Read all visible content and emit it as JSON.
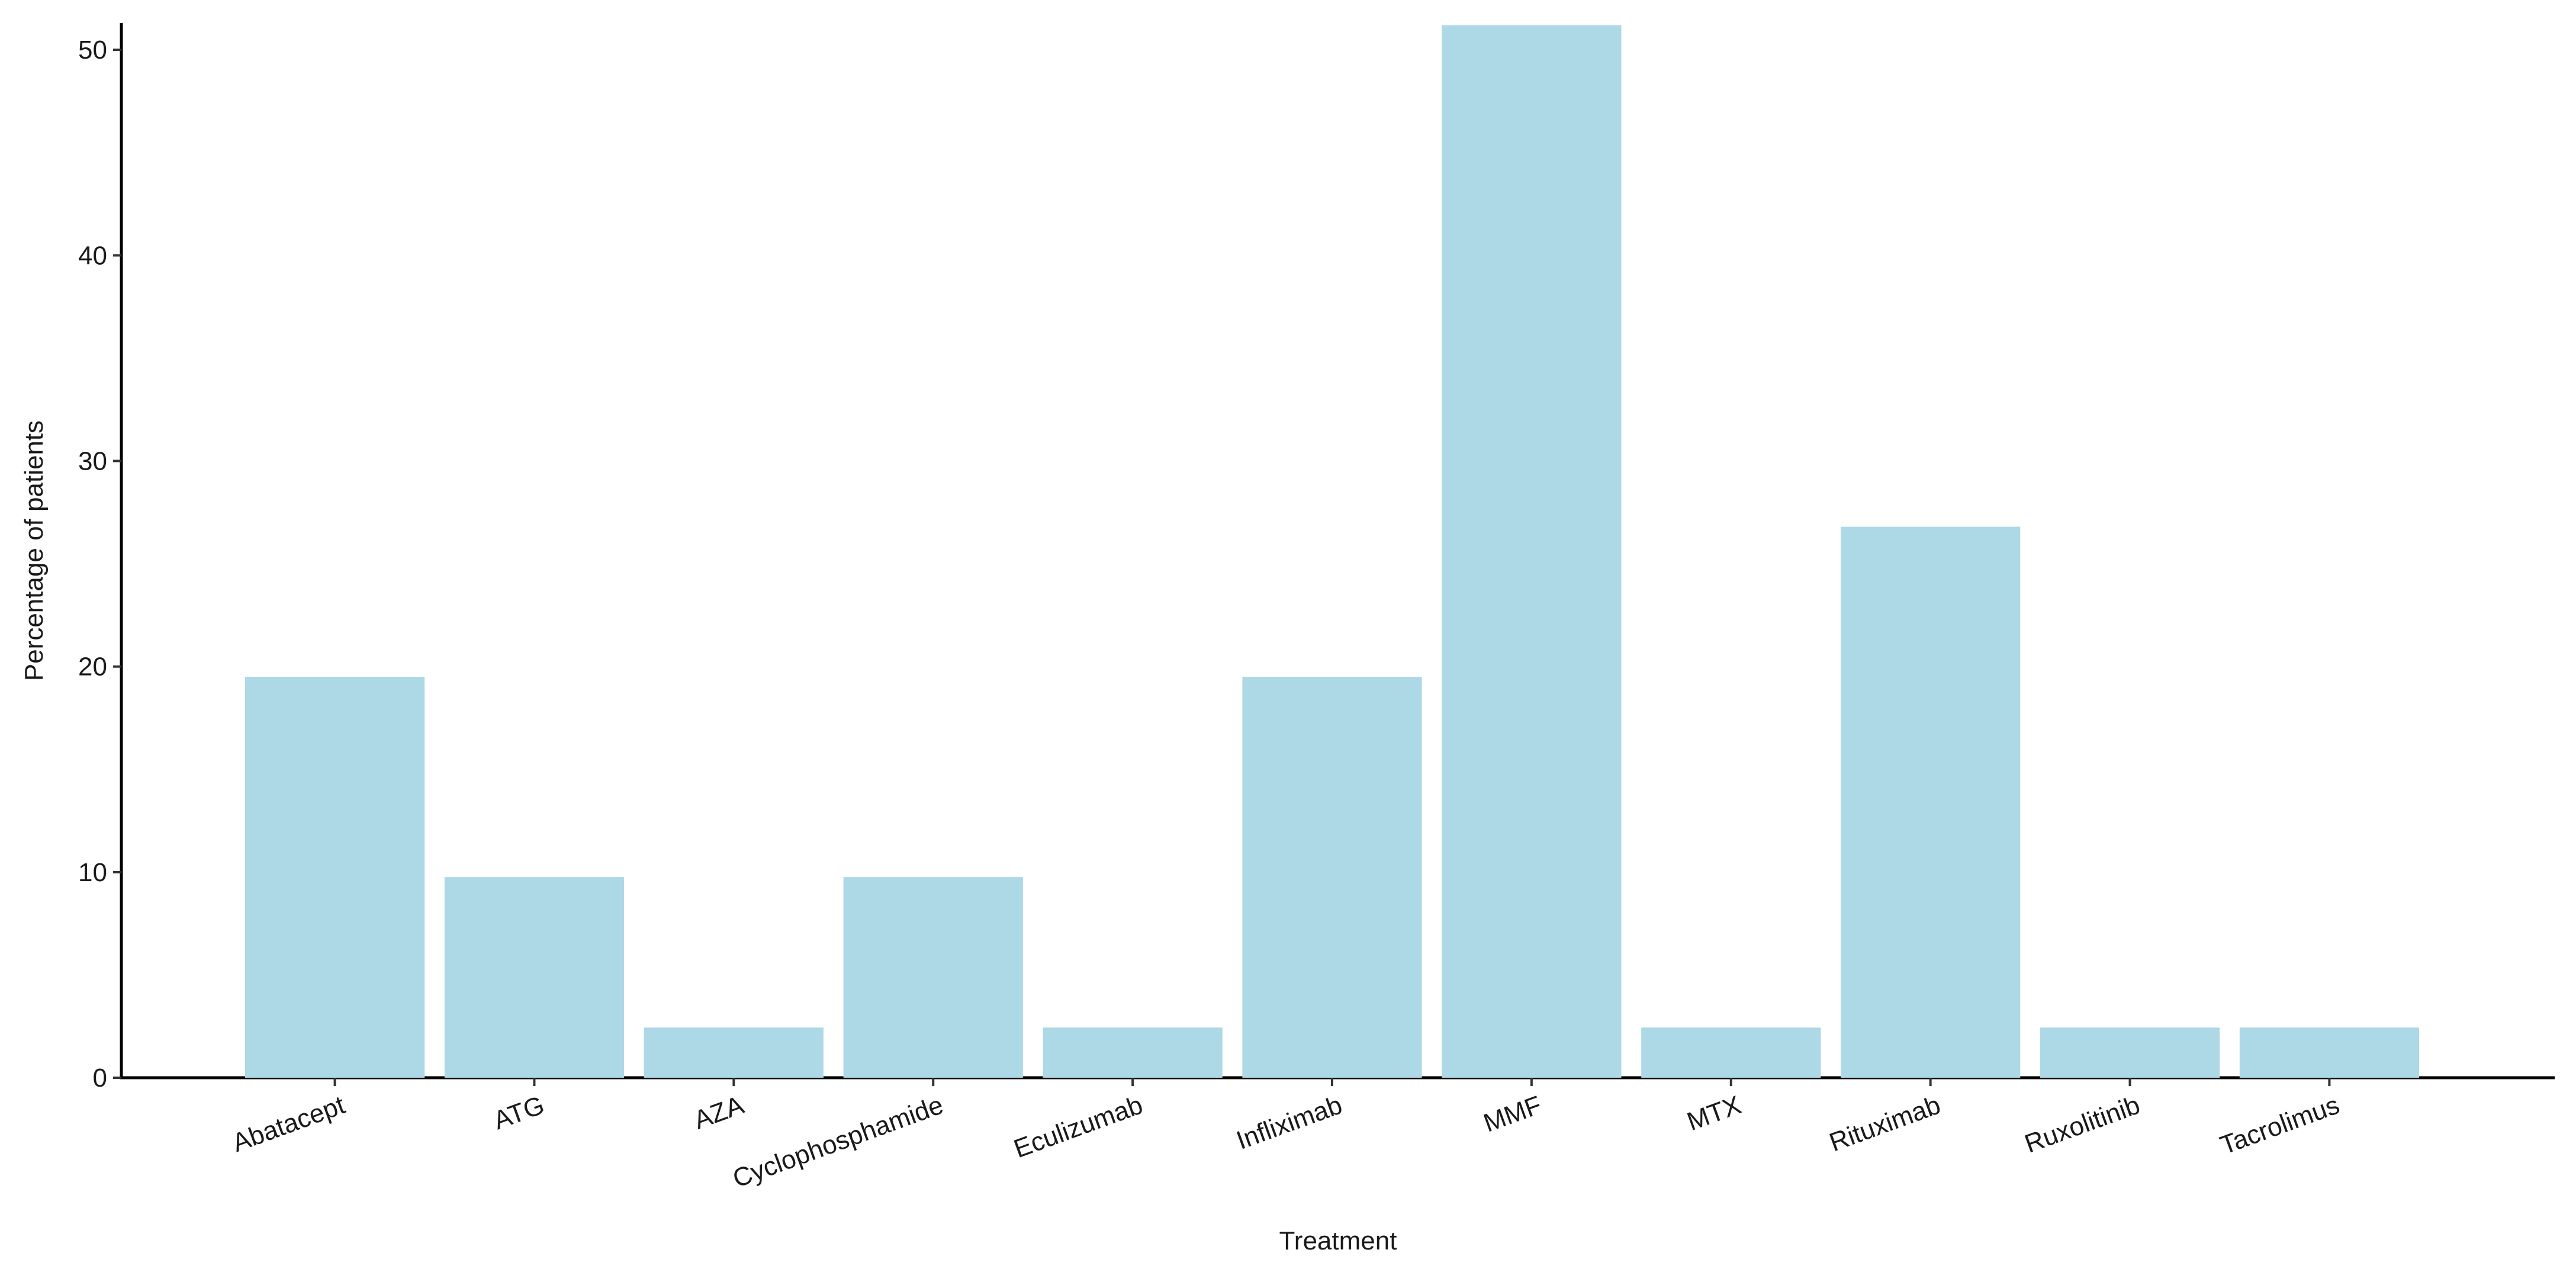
{
  "chart_data": {
    "type": "bar",
    "x_label": "Treatment",
    "y_label": "Percentage of patients",
    "categories": [
      "Abatacept",
      "ATG",
      "AZA",
      "Cyclophosphamide",
      "Eculizumab",
      "Infliximab",
      "MMF",
      "MTX",
      "Rituximab",
      "Ruxolitinib",
      "Tacrolimus"
    ],
    "values": [
      19.5,
      9.76,
      2.44,
      9.76,
      2.44,
      19.5,
      51.2,
      2.44,
      26.8,
      2.44,
      2.44
    ],
    "color": "#add8e6",
    "ylim": [
      0,
      51.3
    ],
    "yticks": [
      0,
      10,
      20,
      30,
      40,
      50
    ],
    "grid": false
  }
}
